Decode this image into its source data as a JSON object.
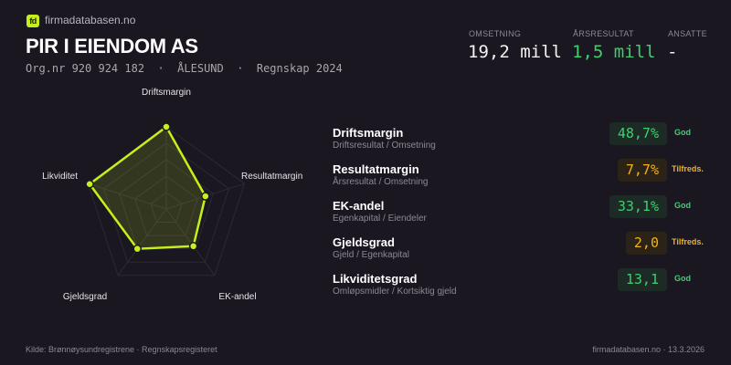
{
  "brand": {
    "logo_text": "fd",
    "name": "firmadatabasen.no"
  },
  "company": {
    "name": "PIR I EIENDOM AS",
    "subtitle": "Org.nr 920 924 182  ·  ÅLESUND  ·  Regnskap 2024"
  },
  "metrics": [
    {
      "label": "OMSETNING",
      "value": "19,2 mill",
      "color": "#f2f2f2"
    },
    {
      "label": "ÅRSRESULTAT",
      "value": "1,5 mill",
      "color": "#3ecf6e"
    },
    {
      "label": "ANSATTE",
      "value": "-",
      "color": "#f2f2f2"
    }
  ],
  "ratios": [
    {
      "title": "Driftsmargin",
      "formula": "Driftsresultat / Omsetning",
      "value": "48,7%",
      "status": "God",
      "level": "good"
    },
    {
      "title": "Resultatmargin",
      "formula": "Årsresultat / Omsetning",
      "value": "7,7%",
      "status": "Tilfreds.",
      "level": "ok"
    },
    {
      "title": "EK-andel",
      "formula": "Egenkapital / Eiendeler",
      "value": "33,1%",
      "status": "God",
      "level": "good"
    },
    {
      "title": "Gjeldsgrad",
      "formula": "Gjeld / Egenkapital",
      "value": "2,0",
      "status": "Tilfreds.",
      "level": "ok"
    },
    {
      "title": "Likviditetsgrad",
      "formula": "Omløpsmidler / Kortsiktig gjeld",
      "value": "13,1",
      "status": "God",
      "level": "good"
    }
  ],
  "chart_data": {
    "type": "radar",
    "axes": [
      "Driftsmargin",
      "Resultatmargin",
      "EK-andel",
      "Gjeldsgrad",
      "Likviditet"
    ],
    "values": [
      1.0,
      0.5,
      0.56,
      0.6,
      0.98
    ],
    "range": [
      0,
      1
    ],
    "rings": 5,
    "color": "#c6f01c"
  },
  "footer": {
    "source": "Kilde: Brønnøysundregistrene · Regnskapsregisteret",
    "site_date": "firmadatabasen.no · 13.3.2026"
  }
}
